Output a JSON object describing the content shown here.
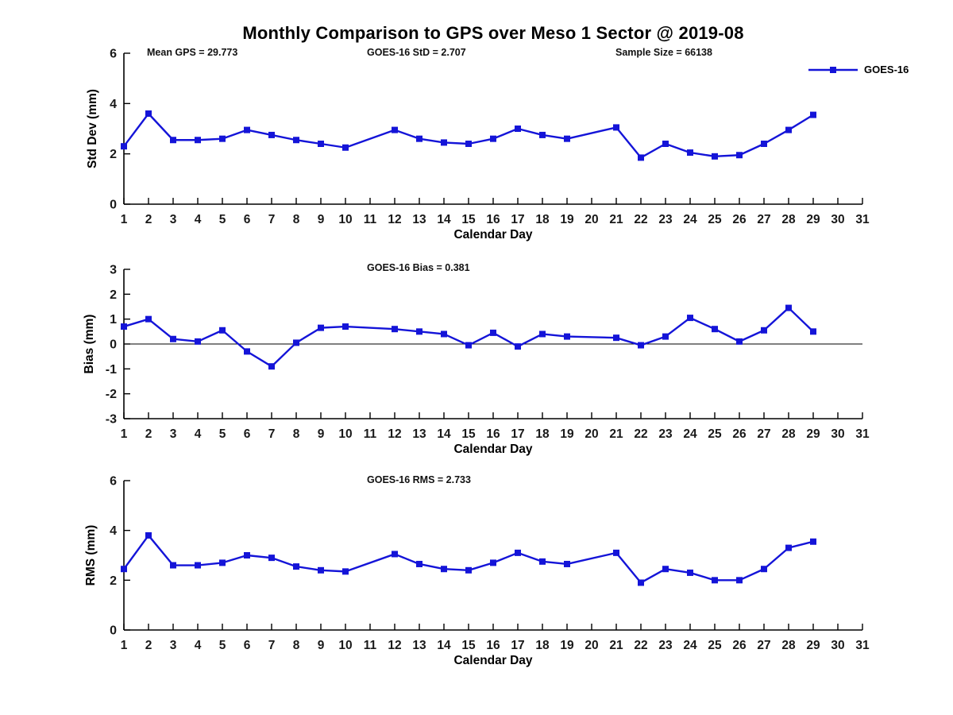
{
  "title": "Monthly Comparison to GPS over Meso 1 Sector @ 2019-08",
  "legend": {
    "label": "GOES-16"
  },
  "colors": {
    "series": "#1414d8",
    "axis": "#000000",
    "text": "#191919"
  },
  "chart_data": [
    {
      "type": "line",
      "title": "",
      "ylabel": "Std Dev (mm)",
      "xlabel": "Calendar Day",
      "ylim": [
        0,
        6
      ],
      "yticks": [
        0,
        2,
        4,
        6
      ],
      "xlim": [
        1,
        31
      ],
      "xticks": [
        1,
        2,
        3,
        4,
        5,
        6,
        7,
        8,
        9,
        10,
        11,
        12,
        13,
        14,
        15,
        16,
        17,
        18,
        19,
        20,
        21,
        22,
        23,
        24,
        25,
        26,
        27,
        28,
        29,
        30,
        31
      ],
      "grid": false,
      "legend_position": "top-right-outside",
      "annotations": [
        {
          "text": "Mean GPS = 29.773"
        },
        {
          "text": "GOES-16 StD = 2.707"
        },
        {
          "text": "Sample Size = 66138"
        }
      ],
      "series": [
        {
          "name": "GOES-16",
          "marker": "square",
          "x": [
            1,
            2,
            3,
            4,
            5,
            6,
            7,
            8,
            9,
            10,
            12,
            13,
            14,
            15,
            16,
            17,
            18,
            19,
            21,
            22,
            23,
            24,
            25,
            26,
            27,
            28,
            29
          ],
          "y": [
            2.3,
            3.6,
            2.55,
            2.55,
            2.6,
            2.95,
            2.75,
            2.55,
            2.4,
            2.25,
            2.95,
            2.6,
            2.45,
            2.4,
            2.6,
            3.0,
            2.75,
            2.6,
            3.05,
            1.85,
            2.4,
            2.05,
            1.9,
            1.95,
            2.4,
            2.95,
            3.55
          ]
        }
      ]
    },
    {
      "type": "line",
      "title": "",
      "ylabel": "Bias (mm)",
      "xlabel": "Calendar Day",
      "ylim": [
        -3,
        3
      ],
      "yticks": [
        -3,
        -2,
        -1,
        0,
        1,
        2,
        3
      ],
      "xlim": [
        1,
        31
      ],
      "xticks": [
        1,
        2,
        3,
        4,
        5,
        6,
        7,
        8,
        9,
        10,
        11,
        12,
        13,
        14,
        15,
        16,
        17,
        18,
        19,
        20,
        21,
        22,
        23,
        24,
        25,
        26,
        27,
        28,
        29,
        30,
        31
      ],
      "grid": false,
      "zero_line": true,
      "annotations": [
        {
          "text": "GOES-16 Bias = 0.381"
        }
      ],
      "series": [
        {
          "name": "GOES-16",
          "marker": "square",
          "x": [
            1,
            2,
            3,
            4,
            5,
            6,
            7,
            8,
            9,
            10,
            12,
            13,
            14,
            15,
            16,
            17,
            18,
            19,
            21,
            22,
            23,
            24,
            25,
            26,
            27,
            28,
            29
          ],
          "y": [
            0.7,
            1.0,
            0.2,
            0.1,
            0.55,
            -0.3,
            -0.9,
            0.05,
            0.65,
            0.7,
            0.6,
            0.5,
            0.4,
            -0.05,
            0.45,
            -0.1,
            0.4,
            0.3,
            0.25,
            -0.05,
            0.3,
            1.05,
            0.6,
            0.1,
            0.55,
            1.45,
            0.5
          ]
        }
      ]
    },
    {
      "type": "line",
      "title": "",
      "ylabel": "RMS (mm)",
      "xlabel": "Calendar Day",
      "ylim": [
        0,
        6
      ],
      "yticks": [
        0,
        2,
        4,
        6
      ],
      "xlim": [
        1,
        31
      ],
      "xticks": [
        1,
        2,
        3,
        4,
        5,
        6,
        7,
        8,
        9,
        10,
        11,
        12,
        13,
        14,
        15,
        16,
        17,
        18,
        19,
        20,
        21,
        22,
        23,
        24,
        25,
        26,
        27,
        28,
        29,
        30,
        31
      ],
      "grid": false,
      "annotations": [
        {
          "text": "GOES-16 RMS = 2.733"
        }
      ],
      "series": [
        {
          "name": "GOES-16",
          "marker": "square",
          "x": [
            1,
            2,
            3,
            4,
            5,
            6,
            7,
            8,
            9,
            10,
            12,
            13,
            14,
            15,
            16,
            17,
            18,
            19,
            21,
            22,
            23,
            24,
            25,
            26,
            27,
            28,
            29
          ],
          "y": [
            2.45,
            3.8,
            2.6,
            2.6,
            2.7,
            3.0,
            2.9,
            2.55,
            2.4,
            2.35,
            3.05,
            2.65,
            2.45,
            2.4,
            2.7,
            3.1,
            2.75,
            2.65,
            3.1,
            1.9,
            2.45,
            2.3,
            2.0,
            2.0,
            2.45,
            3.3,
            3.55
          ]
        }
      ]
    }
  ]
}
